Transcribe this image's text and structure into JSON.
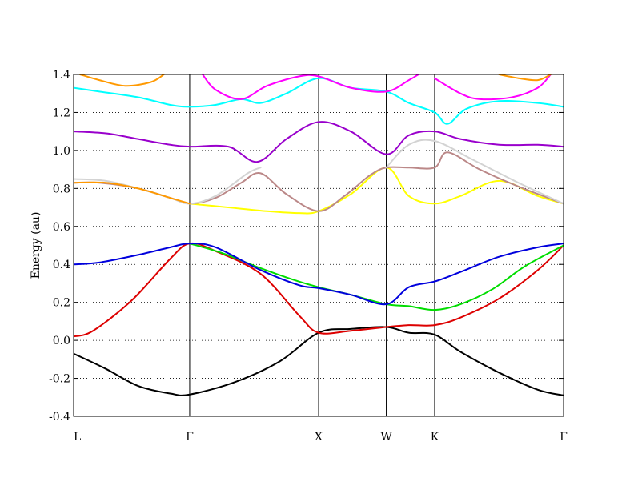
{
  "chart_data": {
    "type": "line",
    "title": "",
    "xlabel": "",
    "ylabel": "Energy (au)",
    "xlim": [
      0,
      7.6
    ],
    "ylim": [
      -0.4,
      1.4
    ],
    "yticks": [
      "-0.4",
      "-0.2",
      "0.0",
      "0.2",
      "0.4",
      "0.6",
      "0.8",
      "1.0",
      "1.2",
      "1.4"
    ],
    "ytick_values": [
      -0.4,
      -0.2,
      0.0,
      0.2,
      0.4,
      0.6,
      0.8,
      1.0,
      1.2,
      1.4
    ],
    "high_symmetry_points": [
      {
        "label": "L",
        "x": 0.0
      },
      {
        "label": "Γ",
        "x": 1.8
      },
      {
        "label": "X",
        "x": 3.8
      },
      {
        "label": "W",
        "x": 4.85
      },
      {
        "label": "K",
        "x": 5.6
      },
      {
        "label": "Γ",
        "x": 7.6
      }
    ],
    "grid": "horizontal dotted",
    "legend": "none",
    "series": [
      {
        "color": "#000000",
        "x": [
          0,
          0.5,
          1.0,
          1.5,
          1.8,
          2.5,
          3.2,
          3.8,
          4.3,
          4.85,
          5.2,
          5.6,
          6.0,
          6.6,
          7.2,
          7.6
        ],
        "y": [
          -0.07,
          -0.15,
          -0.24,
          -0.28,
          -0.285,
          -0.22,
          -0.11,
          0.04,
          0.06,
          0.07,
          0.04,
          0.03,
          -0.06,
          -0.17,
          -0.26,
          -0.29
        ]
      },
      {
        "color": "#dd0000",
        "x": [
          0,
          0.3,
          0.9,
          1.5,
          1.8,
          2.2,
          2.9,
          3.5,
          3.8,
          4.3,
          4.85,
          5.2,
          5.6,
          6.0,
          6.6,
          7.2,
          7.6
        ],
        "y": [
          0.02,
          0.05,
          0.21,
          0.43,
          0.51,
          0.47,
          0.35,
          0.13,
          0.04,
          0.05,
          0.07,
          0.08,
          0.08,
          0.12,
          0.22,
          0.37,
          0.5
        ]
      },
      {
        "color": "#00dd00",
        "x": [
          1.8,
          2.3,
          2.9,
          3.4,
          3.8,
          4.3,
          4.85,
          5.2,
          5.6,
          6.0,
          6.5,
          7.0,
          7.6
        ],
        "y": [
          0.51,
          0.46,
          0.38,
          0.32,
          0.28,
          0.24,
          0.19,
          0.18,
          0.16,
          0.19,
          0.27,
          0.39,
          0.5
        ]
      },
      {
        "color": "#0000dd",
        "x": [
          0,
          0.4,
          1.0,
          1.5,
          1.8,
          2.2,
          2.9,
          3.5,
          3.8,
          4.3,
          4.85,
          5.2,
          5.6,
          6.0,
          6.6,
          7.2,
          7.6
        ],
        "y": [
          0.4,
          0.41,
          0.45,
          0.49,
          0.51,
          0.49,
          0.37,
          0.29,
          0.275,
          0.24,
          0.19,
          0.28,
          0.31,
          0.36,
          0.44,
          0.49,
          0.51
        ]
      },
      {
        "color": "#ffff00",
        "x": [
          1.8,
          2.4,
          3.0,
          3.5,
          3.8,
          4.3,
          4.85,
          5.2,
          5.6,
          6.0,
          6.6,
          7.2,
          7.6
        ],
        "y": [
          0.72,
          0.7,
          0.68,
          0.67,
          0.68,
          0.77,
          0.91,
          0.76,
          0.72,
          0.76,
          0.84,
          0.76,
          0.72
        ]
      },
      {
        "color": "#bb8888",
        "x": [
          0,
          0.4,
          1.0,
          1.5,
          1.8,
          2.2,
          2.6,
          2.9,
          3.3,
          3.8,
          4.2,
          4.6,
          4.85,
          5.2,
          5.6,
          5.8,
          6.3,
          6.9,
          7.6
        ],
        "y": [
          0.83,
          0.83,
          0.8,
          0.75,
          0.72,
          0.75,
          0.83,
          0.88,
          0.77,
          0.68,
          0.76,
          0.87,
          0.91,
          0.91,
          0.91,
          0.99,
          0.9,
          0.81,
          0.72
        ]
      },
      {
        "color": "#d3d3d3",
        "x": [
          0,
          0.5,
          1.0,
          1.5,
          1.8,
          2.2,
          2.7,
          2.9
        ],
        "y": [
          0.85,
          0.84,
          0.8,
          0.75,
          0.72,
          0.76,
          0.88,
          0.91
        ]
      },
      {
        "color": "#d3d3d3",
        "x": [
          4.85,
          5.2,
          5.6,
          6.2,
          6.9,
          7.6
        ],
        "y": [
          0.91,
          1.03,
          1.05,
          0.95,
          0.83,
          0.72
        ]
      },
      {
        "color": "#ff9900",
        "x": [
          0,
          0.5,
          1.0,
          1.5,
          1.8
        ],
        "y": [
          0.83,
          0.83,
          0.8,
          0.75,
          0.72
        ]
      },
      {
        "color": "#9900cc",
        "x": [
          0,
          0.5,
          1.0,
          1.5,
          1.8,
          2.4,
          2.85,
          3.3,
          3.8,
          4.3,
          4.85,
          5.2,
          5.6,
          6.0,
          6.6,
          7.2,
          7.6
        ],
        "y": [
          1.1,
          1.09,
          1.06,
          1.03,
          1.02,
          1.02,
          0.94,
          1.06,
          1.15,
          1.1,
          0.98,
          1.08,
          1.1,
          1.06,
          1.03,
          1.03,
          1.02
        ]
      },
      {
        "color": "#00ffff",
        "x": [
          0,
          0.4,
          1.0,
          1.5,
          1.8,
          2.2,
          2.6,
          2.9,
          3.3,
          3.8,
          4.3,
          4.85,
          5.2,
          5.6,
          5.8,
          6.1,
          6.6,
          7.2,
          7.6
        ],
        "y": [
          1.33,
          1.31,
          1.28,
          1.24,
          1.23,
          1.24,
          1.27,
          1.25,
          1.3,
          1.38,
          1.33,
          1.31,
          1.25,
          1.2,
          1.14,
          1.22,
          1.26,
          1.25,
          1.23
        ]
      },
      {
        "color": "#ff00ff",
        "x": [
          2.0,
          2.2,
          2.6,
          3.0,
          3.5,
          3.8,
          4.3,
          4.85,
          5.2,
          5.35
        ],
        "y": [
          1.4,
          1.32,
          1.27,
          1.34,
          1.39,
          1.39,
          1.33,
          1.31,
          1.37,
          1.4
        ]
      },
      {
        "color": "#ff00ff",
        "x": [
          5.6,
          6.0,
          6.3,
          6.8,
          7.2,
          7.4
        ],
        "y": [
          1.38,
          1.3,
          1.27,
          1.28,
          1.33,
          1.4
        ]
      },
      {
        "color": "#ff9900",
        "x": [
          0.1,
          0.4,
          0.8,
          1.2,
          1.4
        ],
        "y": [
          1.4,
          1.37,
          1.34,
          1.36,
          1.4
        ]
      },
      {
        "color": "#ff9900",
        "x": [
          6.6,
          6.9,
          7.2,
          7.4
        ],
        "y": [
          1.4,
          1.38,
          1.37,
          1.4
        ]
      }
    ]
  }
}
